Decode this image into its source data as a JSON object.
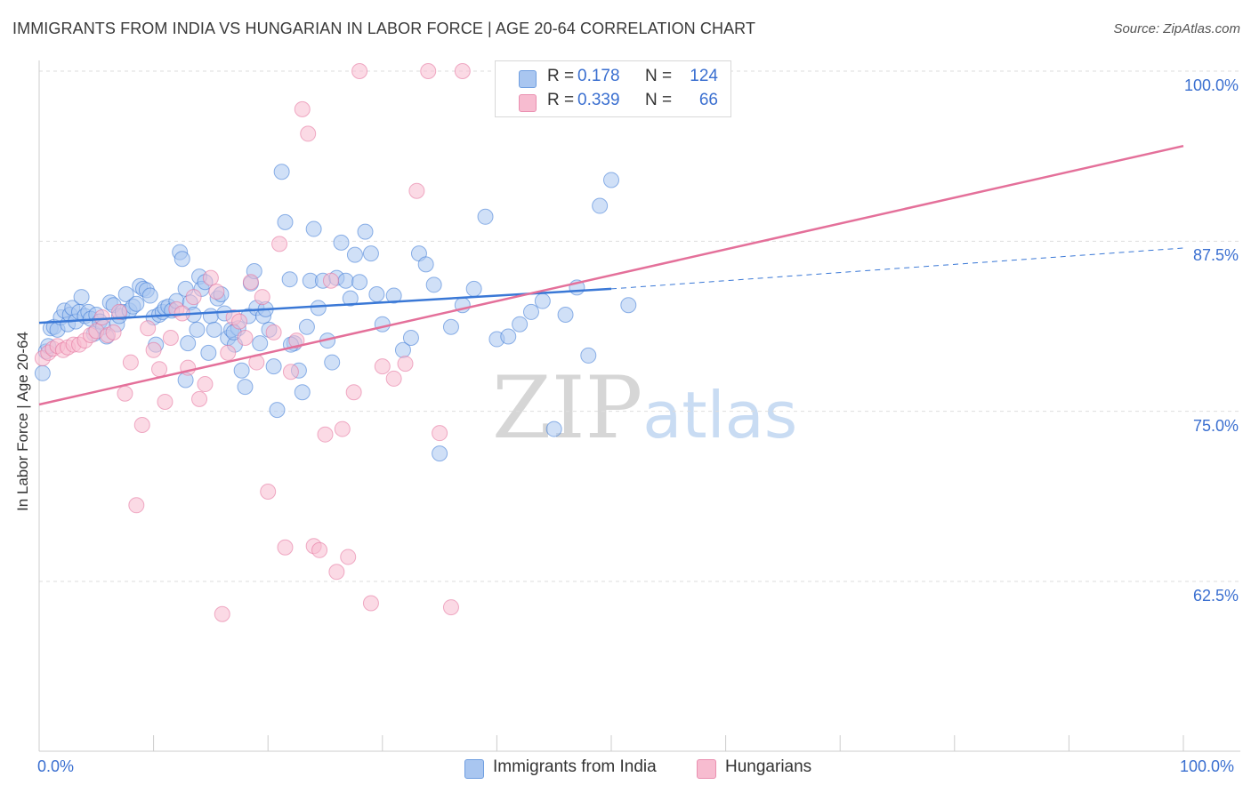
{
  "header": {
    "title": "IMMIGRANTS FROM INDIA VS HUNGARIAN IN LABOR FORCE | AGE 20-64 CORRELATION CHART",
    "source": "Source: ZipAtlas.com"
  },
  "watermark": "ZIPatlas",
  "legend": {
    "rows": [
      {
        "r_label": "R =",
        "r_value": "0.178",
        "n_label": "N =",
        "n_value": "124",
        "color": "#a9c6f0",
        "border": "#6f9ee0"
      },
      {
        "r_label": "R =",
        "r_value": "0.339",
        "n_label": "N =",
        "n_value": "66",
        "color": "#f7bcd0",
        "border": "#ea8fb0"
      }
    ]
  },
  "bottom_legend": {
    "items": [
      {
        "label": "Immigrants from India",
        "color": "#a9c6f0",
        "border": "#6f9ee0"
      },
      {
        "label": "Hungarians",
        "color": "#f7bcd0",
        "border": "#ea8fb0"
      }
    ]
  },
  "chart_data": {
    "type": "scatter",
    "title": "IMMIGRANTS FROM INDIA VS HUNGARIAN IN LABOR FORCE | AGE 20-64 CORRELATION CHART",
    "xlabel": "",
    "ylabel": "In Labor Force | Age 20-64",
    "x_tick_labels": [
      "0.0%",
      "100.0%"
    ],
    "y_tick_labels": [
      "100.0%",
      "87.5%",
      "75.0%",
      "62.5%"
    ],
    "y_ticks": [
      100.0,
      87.5,
      75.0,
      62.5
    ],
    "xlim": [
      0,
      100
    ],
    "ylim": [
      50,
      101.5
    ],
    "grid": "horizontal dashed",
    "legend_position": "top-center",
    "colors": {
      "india": "#3a78d6",
      "hungarian": "#e4709a",
      "india_fill": "#a9c6f0",
      "hungarian_fill": "#f7bcd0",
      "axis_text": "#3a6fd0"
    },
    "series": [
      {
        "name": "Immigrants from India",
        "color": "#3a78d6",
        "points": [
          [
            0.3,
            77.8
          ],
          [
            0.6,
            79.4
          ],
          [
            0.8,
            79.8
          ],
          [
            1.0,
            81.1
          ],
          [
            1.3,
            81.2
          ],
          [
            1.6,
            81.0
          ],
          [
            1.9,
            81.9
          ],
          [
            2.2,
            82.4
          ],
          [
            2.5,
            81.4
          ],
          [
            2.7,
            82.1
          ],
          [
            2.9,
            82.6
          ],
          [
            3.2,
            81.6
          ],
          [
            3.5,
            82.3
          ],
          [
            3.7,
            83.4
          ],
          [
            4.0,
            82.0
          ],
          [
            4.3,
            82.3
          ],
          [
            4.5,
            81.8
          ],
          [
            4.8,
            80.7
          ],
          [
            5.0,
            82.1
          ],
          [
            5.3,
            81.6
          ],
          [
            5.6,
            81.2
          ],
          [
            5.9,
            80.5
          ],
          [
            6.2,
            83.0
          ],
          [
            6.5,
            82.8
          ],
          [
            6.8,
            81.4
          ],
          [
            7.0,
            82.0
          ],
          [
            7.3,
            82.3
          ],
          [
            7.6,
            83.6
          ],
          [
            7.9,
            82.4
          ],
          [
            8.2,
            82.7
          ],
          [
            8.5,
            82.9
          ],
          [
            8.8,
            84.2
          ],
          [
            9.1,
            84.0
          ],
          [
            9.4,
            83.9
          ],
          [
            9.7,
            83.5
          ],
          [
            10.0,
            81.9
          ],
          [
            10.2,
            79.9
          ],
          [
            10.5,
            82.1
          ],
          [
            10.8,
            82.3
          ],
          [
            11.0,
            82.6
          ],
          [
            11.3,
            82.7
          ],
          [
            11.6,
            82.4
          ],
          [
            12.0,
            83.1
          ],
          [
            12.3,
            86.7
          ],
          [
            12.5,
            86.2
          ],
          [
            12.8,
            84.0
          ],
          [
            13.0,
            80.0
          ],
          [
            13.2,
            83.0
          ],
          [
            13.5,
            82.1
          ],
          [
            13.8,
            81.0
          ],
          [
            14.0,
            84.9
          ],
          [
            14.2,
            84.0
          ],
          [
            14.5,
            84.5
          ],
          [
            14.8,
            79.3
          ],
          [
            15.0,
            82.0
          ],
          [
            15.3,
            81.0
          ],
          [
            15.6,
            83.3
          ],
          [
            15.9,
            83.6
          ],
          [
            16.2,
            82.2
          ],
          [
            16.5,
            80.4
          ],
          [
            16.8,
            81.0
          ],
          [
            17.1,
            79.9
          ],
          [
            17.4,
            81.1
          ],
          [
            17.7,
            78.0
          ],
          [
            18.0,
            76.8
          ],
          [
            18.3,
            82.0
          ],
          [
            18.5,
            84.4
          ],
          [
            18.8,
            85.3
          ],
          [
            19.0,
            82.6
          ],
          [
            19.3,
            80.0
          ],
          [
            19.6,
            82.0
          ],
          [
            19.8,
            82.5
          ],
          [
            20.1,
            81.0
          ],
          [
            20.5,
            78.3
          ],
          [
            20.8,
            75.1
          ],
          [
            21.2,
            92.6
          ],
          [
            21.5,
            88.9
          ],
          [
            21.9,
            84.7
          ],
          [
            22.3,
            80.0
          ],
          [
            22.7,
            78.0
          ],
          [
            23.0,
            76.4
          ],
          [
            23.4,
            81.2
          ],
          [
            23.7,
            84.6
          ],
          [
            24.0,
            88.4
          ],
          [
            24.4,
            82.6
          ],
          [
            24.8,
            84.6
          ],
          [
            25.2,
            80.2
          ],
          [
            25.6,
            78.6
          ],
          [
            26.0,
            84.8
          ],
          [
            26.4,
            87.4
          ],
          [
            26.8,
            84.6
          ],
          [
            27.2,
            83.3
          ],
          [
            27.6,
            86.5
          ],
          [
            28.0,
            84.5
          ],
          [
            28.5,
            88.2
          ],
          [
            29.0,
            86.6
          ],
          [
            29.5,
            83.6
          ],
          [
            30.0,
            81.4
          ],
          [
            31.0,
            83.5
          ],
          [
            31.8,
            79.5
          ],
          [
            32.5,
            80.4
          ],
          [
            33.2,
            86.6
          ],
          [
            33.8,
            85.8
          ],
          [
            34.5,
            84.3
          ],
          [
            35.0,
            71.9
          ],
          [
            36.0,
            81.2
          ],
          [
            37.0,
            82.8
          ],
          [
            38.0,
            84.0
          ],
          [
            39.0,
            89.3
          ],
          [
            40.0,
            80.3
          ],
          [
            41.0,
            80.5
          ],
          [
            42.0,
            81.4
          ],
          [
            43.0,
            82.3
          ],
          [
            44.0,
            83.1
          ],
          [
            45.0,
            73.7
          ],
          [
            46.0,
            82.1
          ],
          [
            47.0,
            84.1
          ],
          [
            48.0,
            79.1
          ],
          [
            49.0,
            90.1
          ],
          [
            50.0,
            92.0
          ],
          [
            51.5,
            82.8
          ],
          [
            17.0,
            80.8
          ],
          [
            22.0,
            79.9
          ],
          [
            12.8,
            77.3
          ]
        ]
      },
      {
        "name": "Hungarians",
        "color": "#e4709a",
        "points": [
          [
            0.3,
            78.9
          ],
          [
            0.8,
            79.3
          ],
          [
            1.2,
            79.6
          ],
          [
            1.6,
            79.8
          ],
          [
            2.1,
            79.5
          ],
          [
            2.5,
            79.7
          ],
          [
            3.0,
            79.9
          ],
          [
            3.5,
            79.9
          ],
          [
            4.0,
            80.2
          ],
          [
            4.5,
            80.6
          ],
          [
            5.0,
            80.9
          ],
          [
            5.5,
            81.9
          ],
          [
            6.0,
            80.6
          ],
          [
            6.5,
            80.8
          ],
          [
            7.0,
            82.3
          ],
          [
            7.5,
            76.3
          ],
          [
            8.0,
            78.6
          ],
          [
            8.5,
            68.1
          ],
          [
            9.0,
            74.0
          ],
          [
            9.5,
            81.1
          ],
          [
            10.0,
            79.5
          ],
          [
            10.5,
            78.1
          ],
          [
            11.0,
            75.7
          ],
          [
            11.5,
            80.4
          ],
          [
            12.0,
            82.5
          ],
          [
            12.5,
            82.2
          ],
          [
            13.0,
            78.2
          ],
          [
            13.5,
            83.4
          ],
          [
            14.0,
            75.9
          ],
          [
            14.5,
            77.0
          ],
          [
            15.0,
            84.8
          ],
          [
            15.5,
            83.8
          ],
          [
            16.0,
            60.1
          ],
          [
            16.5,
            79.3
          ],
          [
            17.0,
            81.9
          ],
          [
            17.5,
            81.6
          ],
          [
            18.0,
            80.4
          ],
          [
            18.5,
            84.5
          ],
          [
            19.0,
            78.6
          ],
          [
            19.5,
            83.4
          ],
          [
            20.0,
            69.1
          ],
          [
            20.5,
            80.8
          ],
          [
            21.0,
            87.3
          ],
          [
            21.5,
            65.0
          ],
          [
            22.0,
            77.9
          ],
          [
            22.5,
            80.2
          ],
          [
            23.0,
            97.2
          ],
          [
            23.5,
            95.4
          ],
          [
            24.0,
            65.1
          ],
          [
            24.5,
            64.8
          ],
          [
            25.0,
            73.3
          ],
          [
            25.5,
            84.6
          ],
          [
            26.0,
            63.2
          ],
          [
            26.5,
            73.7
          ],
          [
            27.0,
            64.3
          ],
          [
            27.5,
            76.4
          ],
          [
            28.0,
            100.0
          ],
          [
            29.0,
            60.9
          ],
          [
            30.0,
            78.3
          ],
          [
            31.0,
            77.4
          ],
          [
            32.0,
            78.5
          ],
          [
            33.0,
            91.2
          ],
          [
            34.0,
            100.0
          ],
          [
            35.0,
            73.4
          ],
          [
            36.0,
            60.6
          ],
          [
            37.0,
            100.0
          ]
        ]
      }
    ],
    "trendlines": [
      {
        "series": "Immigrants from India",
        "solid": [
          [
            0,
            81.5
          ],
          [
            50,
            84.0
          ]
        ],
        "dashed": [
          [
            50,
            84.0
          ],
          [
            100,
            87.0
          ]
        ]
      },
      {
        "series": "Hungarians",
        "solid": [
          [
            0,
            75.5
          ],
          [
            100,
            94.5
          ]
        ]
      }
    ]
  }
}
